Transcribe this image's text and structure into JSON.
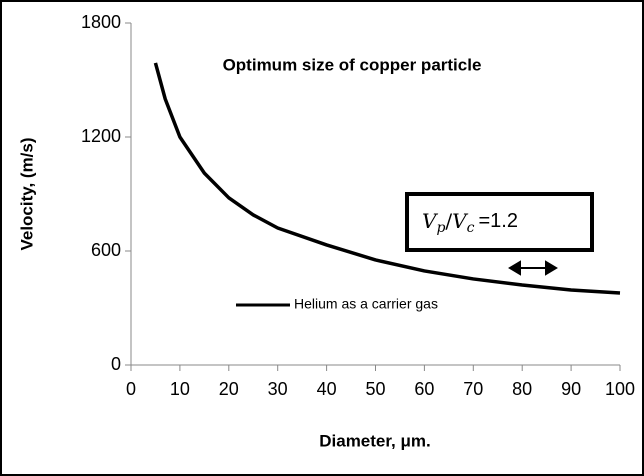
{
  "chart_data": {
    "type": "line",
    "title": "Optimum size of copper particle",
    "x_label": "Diameter, μm.",
    "y_label": "Velocity, (m/s)",
    "x": [
      5,
      7,
      10,
      15,
      20,
      25,
      30,
      40,
      50,
      60,
      70,
      80,
      90,
      100
    ],
    "series": [
      {
        "name": "Helium as a carrier gas",
        "color": "#000000",
        "values": [
          1590,
          1400,
          1200,
          1010,
          880,
          790,
          721,
          632,
          553,
          495,
          453,
          421,
          395,
          379
        ]
      }
    ],
    "xlim": [
      0,
      100
    ],
    "xticks": [
      0,
      10,
      20,
      30,
      40,
      50,
      60,
      70,
      80,
      90,
      100
    ],
    "ylim": [
      0,
      1800
    ],
    "yticks": [
      0,
      600,
      1200,
      1800
    ],
    "grid": false,
    "legend": "bottom",
    "annotation": {
      "v1": "V",
      "sub1": "p",
      "slash": "/",
      "v2": "V",
      "sub2": "c",
      "rest": "=1.2"
    }
  }
}
